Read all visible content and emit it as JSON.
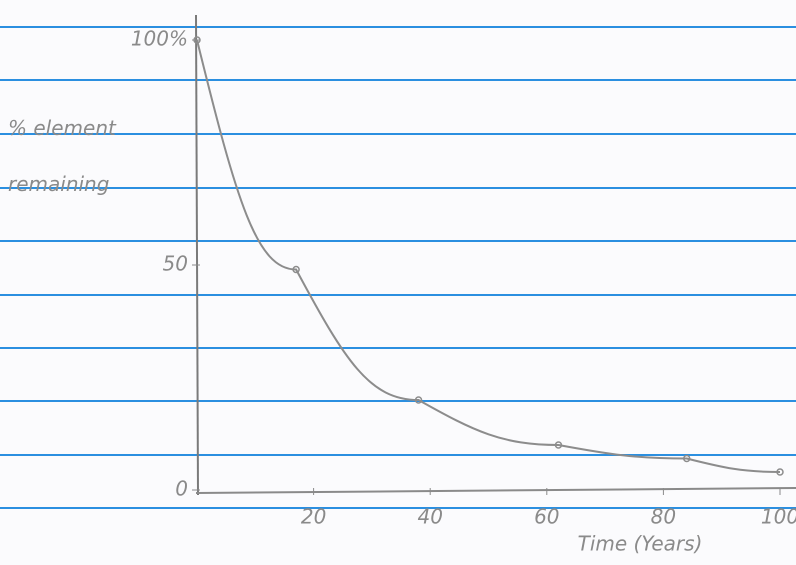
{
  "chart_data": {
    "type": "line",
    "y_label": "% element remaining",
    "x_label": "Time (Years)",
    "x": [
      0,
      17,
      38,
      62,
      84,
      100
    ],
    "values": [
      100,
      49,
      20,
      10,
      7,
      4
    ],
    "color": "#8c8c8c",
    "xlim": [
      0,
      100
    ],
    "xticks": [
      20,
      40,
      60,
      80,
      100
    ],
    "ylim": [
      0,
      100
    ],
    "yticks": [
      0,
      50,
      {
        "value": 100,
        "label": "100%"
      }
    ],
    "grid": false
  }
}
